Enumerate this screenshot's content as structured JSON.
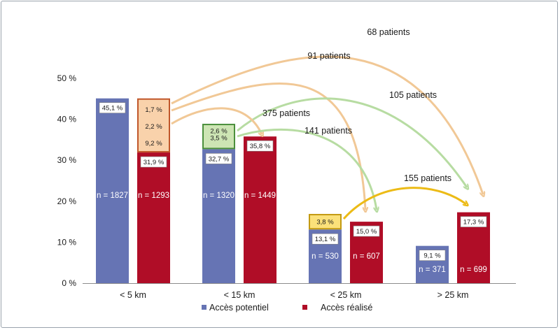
{
  "chart_data": {
    "type": "bar",
    "categories": [
      "< 5 km",
      "< 15 km",
      "< 25 km",
      "> 25 km"
    ],
    "ylim": [
      0,
      50
    ],
    "yticks": [
      0,
      10,
      20,
      30,
      40,
      50
    ],
    "ytick_labels": [
      "0 %",
      "10 %",
      "20 %",
      "30 %",
      "40 %",
      "50 %"
    ],
    "colors": {
      "potentiel": "#6674b4",
      "realise": "#b00d27",
      "orange_fill": "#f9d2ab",
      "orange_border": "#c0572a",
      "green_fill": "#cde5b4",
      "green_border": "#4b8f3c",
      "yellow_fill": "#fbe17a",
      "yellow_border": "#c39a12",
      "arrow_orange": "#f1c896",
      "arrow_green": "#b7dca2",
      "arrow_yellow": "#ecbb16"
    },
    "series": [
      {
        "name": "Accès potentiel",
        "values": [
          45.1,
          32.7,
          13.1,
          9.1
        ],
        "value_labels": [
          "45,1 %",
          "32,7 %",
          "13,1 %",
          "9,1 %"
        ],
        "n_labels": [
          "n = 1827",
          "n = 1320",
          "n = 530",
          "n = 371"
        ]
      },
      {
        "name": "Accès réalisé",
        "values": [
          31.9,
          35.8,
          15.0,
          17.3
        ],
        "value_labels": [
          "31,9 %",
          "35,8 %",
          "15,0 %",
          "17,3 %"
        ],
        "n_labels": [
          "n = 1293",
          "n = 1449",
          "n = 607",
          "n = 699"
        ]
      }
    ],
    "stacked_segments": [
      {
        "category": "< 5 km",
        "bottom": 31.9,
        "top": 45.1,
        "color": "orange",
        "labels": [
          {
            "text": "1,7 %",
            "at": 42.4
          },
          {
            "text": "2,2 %",
            "at": 38.3
          },
          {
            "text": "9,2 %",
            "at": 34.2
          }
        ]
      },
      {
        "category": "< 15 km",
        "bottom": 32.7,
        "top": 38.9,
        "color": "green",
        "labels": [
          {
            "text": "2,6 %",
            "at": 37.2
          },
          {
            "text": "3,5 %",
            "at": 35.5
          }
        ]
      },
      {
        "category": "< 25 km",
        "bottom": 13.1,
        "top": 16.9,
        "color": "yellow",
        "labels": [
          {
            "text": "3,8 %",
            "at": 15.0
          }
        ]
      }
    ],
    "flows": [
      {
        "label": "68 patients",
        "from": "< 5 km",
        "to": "> 25 km",
        "color": "orange"
      },
      {
        "label": "91 patients",
        "from": "< 5 km",
        "to": "< 25 km",
        "color": "orange"
      },
      {
        "label": "105 patients",
        "from": "< 15 km",
        "to": "> 25 km",
        "color": "green"
      },
      {
        "label": "375 patients",
        "from": "< 5 km",
        "to": "< 15 km",
        "color": "orange"
      },
      {
        "label": "141 patients",
        "from": "< 15 km",
        "to": "< 25 km",
        "color": "green"
      },
      {
        "label": "155 patients",
        "from": "< 25 km",
        "to": "> 25 km",
        "color": "yellow"
      }
    ],
    "legend": [
      "Accès potentiel",
      "Accès réalisé"
    ],
    "legend_position": "bottom-center",
    "grid": false
  }
}
